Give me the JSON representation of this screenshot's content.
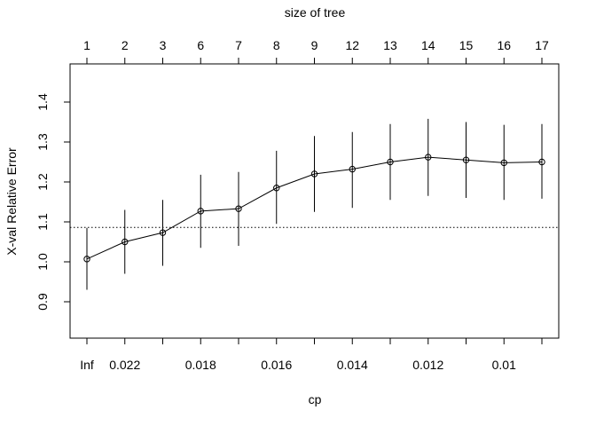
{
  "chart_data": {
    "type": "line",
    "title": "",
    "top_axis_label": "size of tree",
    "xlabel": "cp",
    "ylabel": "X-val Relative Error",
    "size_of_tree": [
      "1",
      "2",
      "3",
      "6",
      "7",
      "8",
      "9",
      "12",
      "13",
      "14",
      "15",
      "16",
      "17"
    ],
    "cp_tick_labels": [
      "Inf",
      "0.022",
      "",
      "0.018",
      "",
      "0.016",
      "",
      "0.014",
      "",
      "0.012",
      "",
      "0.01",
      ""
    ],
    "y_ticks": [
      "0.9",
      "1.0",
      "1.1",
      "1.2",
      "1.3",
      "1.4"
    ],
    "ylim": [
      0.8,
      1.48
    ],
    "series": [
      {
        "values": [
          1.007,
          1.05,
          1.073,
          1.127,
          1.133,
          1.185,
          1.22,
          1.232,
          1.25,
          1.262,
          1.255,
          1.248,
          1.25
        ],
        "lower": [
          0.93,
          0.97,
          0.99,
          1.035,
          1.04,
          1.095,
          1.125,
          1.135,
          1.155,
          1.165,
          1.16,
          1.155,
          1.158
        ],
        "upper": [
          1.085,
          1.13,
          1.155,
          1.218,
          1.225,
          1.278,
          1.315,
          1.325,
          1.345,
          1.358,
          1.35,
          1.343,
          1.345
        ]
      }
    ],
    "reference_line": 1.086
  }
}
